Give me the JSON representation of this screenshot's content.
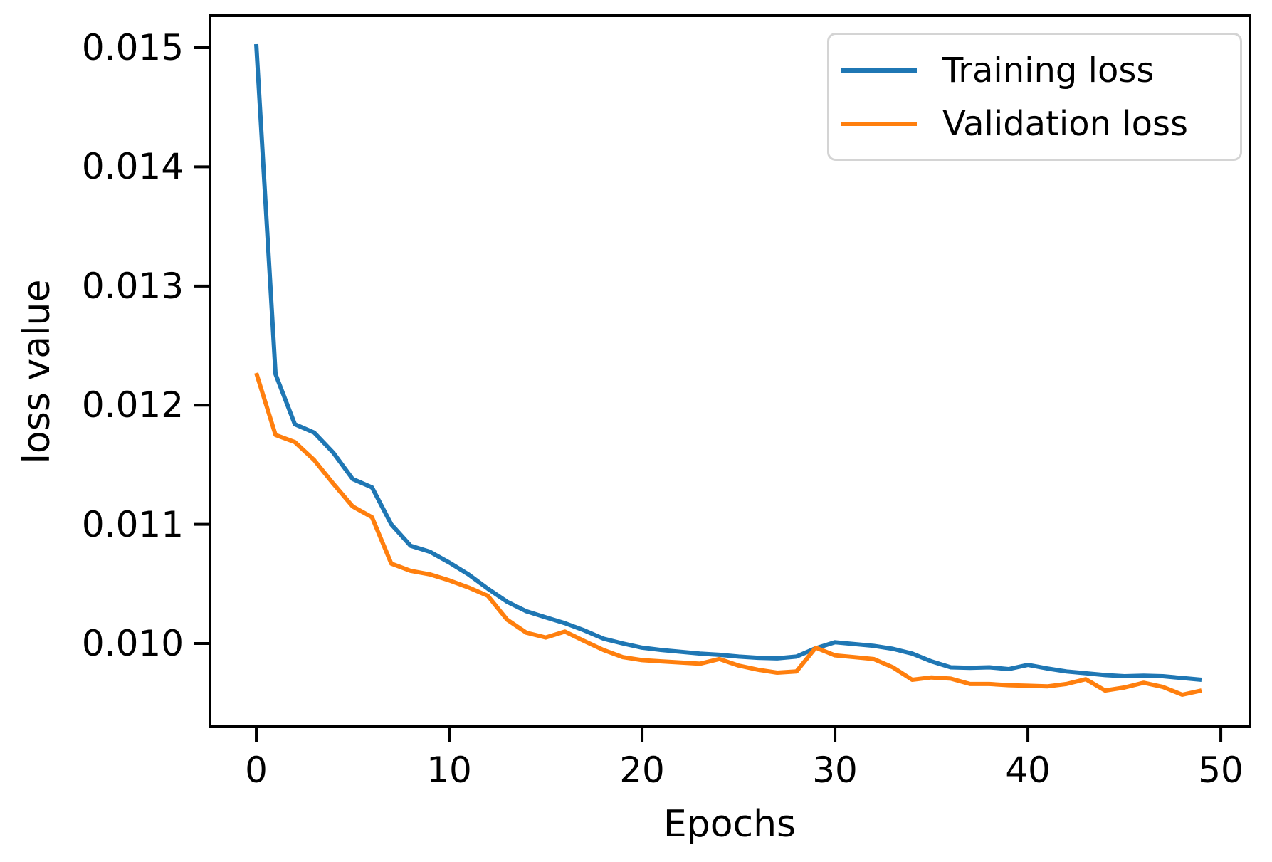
{
  "figure": {
    "background": "#ffffff",
    "xlabel": "Epochs",
    "ylabel": "loss value",
    "legend": {
      "items": [
        {
          "label": "Training loss",
          "color": "#1f77b4"
        },
        {
          "label": "Validation loss",
          "color": "#ff7f0e"
        }
      ]
    }
  },
  "chart_data": {
    "type": "line",
    "title": "",
    "xlabel": "Epochs",
    "ylabel": "loss value",
    "grid": false,
    "legend_position": "upper right",
    "axis_color": "#000000",
    "line_width": 6,
    "xlim": [
      -2.4,
      51.51
    ],
    "ylim": [
      0.009301,
      0.015269
    ],
    "xticks": {
      "values": [
        0,
        10,
        20,
        30,
        40,
        50
      ],
      "labels": [
        "0",
        "10",
        "20",
        "30",
        "40",
        "50"
      ]
    },
    "yticks": {
      "values": [
        0.01,
        0.011,
        0.012,
        0.013,
        0.014,
        0.015
      ],
      "labels": [
        "0.010",
        "0.011",
        "0.012",
        "0.013",
        "0.014",
        "0.015"
      ]
    },
    "x": [
      0,
      1,
      2,
      3,
      4,
      5,
      6,
      7,
      8,
      9,
      10,
      11,
      12,
      13,
      14,
      15,
      16,
      17,
      18,
      19,
      20,
      21,
      22,
      23,
      24,
      25,
      26,
      27,
      28,
      29,
      30,
      31,
      32,
      33,
      34,
      35,
      36,
      37,
      38,
      39,
      40,
      41,
      42,
      43,
      44,
      45,
      46,
      47,
      48,
      49
    ],
    "series": [
      {
        "name": "Training loss",
        "color": "#1f77b4",
        "values": [
          0.01503,
          0.01226,
          0.01184,
          0.01177,
          0.0116,
          0.01138,
          0.01131,
          0.011,
          0.01082,
          0.01077,
          0.01068,
          0.01058,
          0.01046,
          0.01035,
          0.01027,
          0.01022,
          0.01017,
          0.01011,
          0.01004,
          0.01,
          0.009965,
          0.009945,
          0.00993,
          0.009915,
          0.009905,
          0.00989,
          0.00988,
          0.009875,
          0.00989,
          0.00996,
          0.01001,
          0.009995,
          0.00998,
          0.009955,
          0.009915,
          0.00985,
          0.0098,
          0.009795,
          0.0098,
          0.009785,
          0.00982,
          0.00979,
          0.009765,
          0.00975,
          0.009735,
          0.009725,
          0.00973,
          0.009725,
          0.00971,
          0.009695
        ]
      },
      {
        "name": "Validation loss",
        "color": "#ff7f0e",
        "values": [
          0.01227,
          0.01175,
          0.01169,
          0.01154,
          0.01134,
          0.01115,
          0.01106,
          0.01067,
          0.01061,
          0.01058,
          0.01053,
          0.01047,
          0.0104,
          0.0102,
          0.01009,
          0.01005,
          0.0101,
          0.01002,
          0.009945,
          0.009885,
          0.00986,
          0.00985,
          0.00984,
          0.00983,
          0.00987,
          0.009815,
          0.00978,
          0.009755,
          0.009765,
          0.009965,
          0.0099,
          0.009885,
          0.00987,
          0.0098,
          0.009695,
          0.009715,
          0.009705,
          0.00966,
          0.00966,
          0.00965,
          0.009645,
          0.00964,
          0.00966,
          0.0097,
          0.009605,
          0.00963,
          0.00967,
          0.009635,
          0.00957,
          0.009605
        ]
      }
    ]
  }
}
